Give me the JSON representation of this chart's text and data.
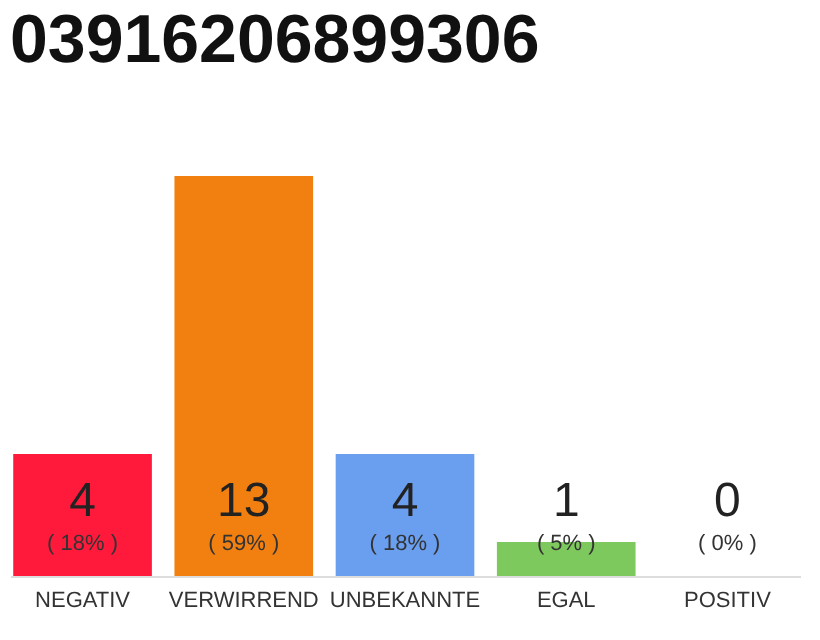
{
  "chart_data": {
    "type": "bar",
    "title": "03916206899306",
    "categories": [
      "NEGATIV",
      "VERWIRREND",
      "UNBEKANNTE",
      "EGAL",
      "POSITIV"
    ],
    "values": [
      18,
      59,
      18,
      5,
      0
    ],
    "colors": [
      "#ff1a3c",
      "#f28010",
      "#6a9ff0",
      "#7dc95e",
      "#bbbbbb"
    ],
    "value_labels": [
      "( 18% )",
      "( 59% )",
      "( 18% )",
      "( 5% )",
      "( 0% )"
    ],
    "annotations": [
      "4",
      "13",
      "4",
      "1",
      "0"
    ],
    "grid": false
  }
}
